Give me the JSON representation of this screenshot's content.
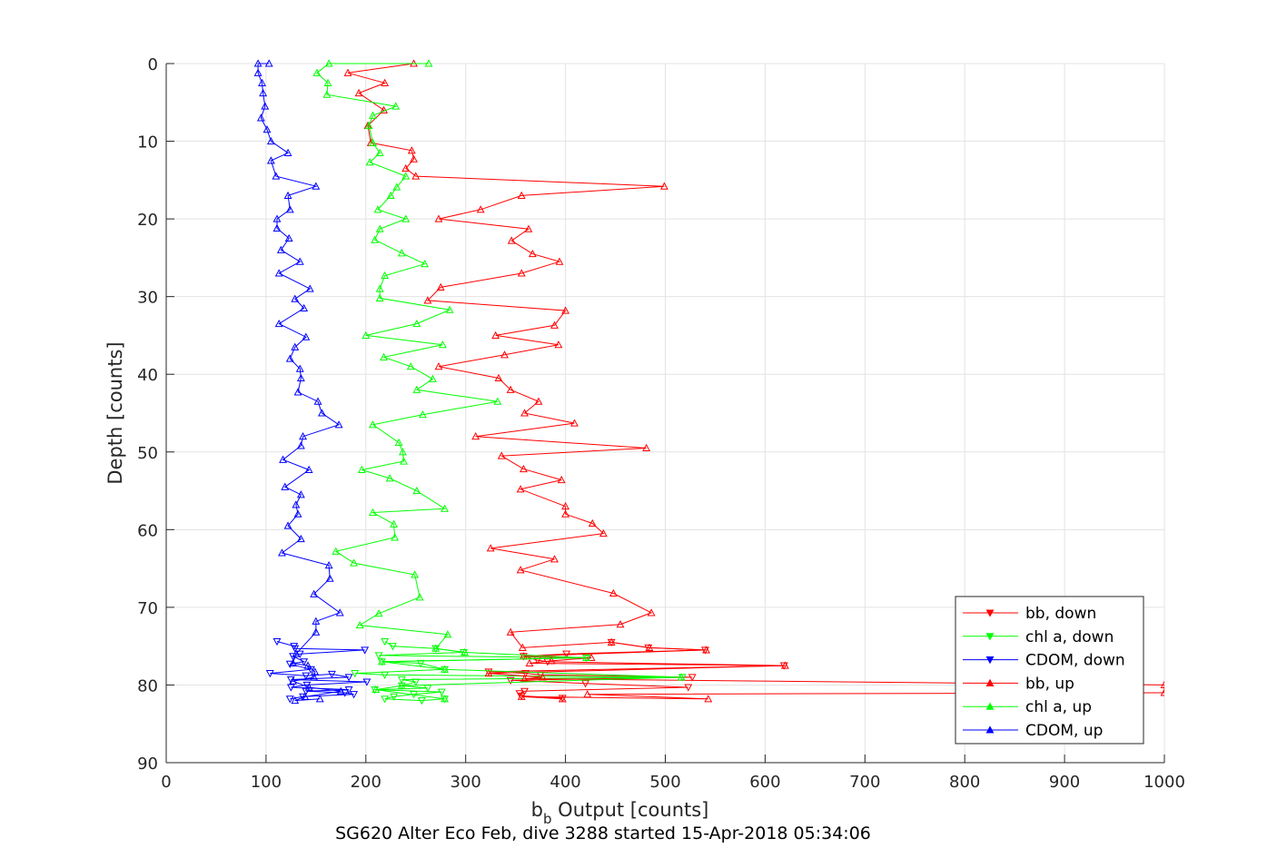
{
  "chart_data": {
    "type": "line",
    "title": "",
    "xlabel": "b",
    "xlabel_subscript": "b",
    "xlabel_suffix": " Output [counts]",
    "ylabel": "Depth [counts]",
    "footer": "SG620 Alter Eco Feb, dive 3288 started 15-Apr-2018 05:34:06",
    "xlim": [
      0,
      1000
    ],
    "ylim": [
      0,
      90
    ],
    "y_reversed": true,
    "grid": true,
    "x_ticks": [
      0,
      100,
      200,
      300,
      400,
      500,
      600,
      700,
      800,
      900,
      1000
    ],
    "y_ticks": [
      0,
      10,
      20,
      30,
      40,
      50,
      60,
      70,
      80,
      90
    ],
    "legend_position": "bottom-right",
    "series": [
      {
        "name": "bb, down",
        "color": "#ff0000",
        "marker": "triangle-down",
        "points": [
          [
            446,
            74.5
          ],
          [
            483,
            75.2
          ],
          [
            540,
            75.5
          ],
          [
            401,
            76
          ],
          [
            358,
            76.3
          ],
          [
            372,
            76.8
          ],
          [
            382,
            77
          ],
          [
            619,
            77.5
          ],
          [
            323,
            78.3
          ],
          [
            360,
            78.5
          ],
          [
            375,
            78.7
          ],
          [
            527,
            79
          ],
          [
            345,
            79.4
          ],
          [
            420,
            79.8
          ],
          [
            523,
            80.3
          ],
          [
            359,
            80.8
          ],
          [
            354,
            81.1
          ],
          [
            356,
            81.4
          ],
          [
            397,
            81.7
          ]
        ]
      },
      {
        "name": "chl a, down",
        "color": "#00ff00",
        "marker": "triangle-down",
        "points": [
          [
            219,
            74.4
          ],
          [
            227,
            75
          ],
          [
            270,
            75.3
          ],
          [
            298,
            75.8
          ],
          [
            213,
            76.2
          ],
          [
            421,
            76.5
          ],
          [
            216,
            77
          ],
          [
            255,
            77.2
          ],
          [
            279,
            78
          ],
          [
            189,
            78.5
          ],
          [
            219,
            78.7
          ],
          [
            517,
            79
          ],
          [
            236,
            79.3
          ],
          [
            250,
            79.6
          ],
          [
            236,
            80.1
          ],
          [
            262,
            80.4
          ],
          [
            209,
            80.6
          ],
          [
            276,
            80.9
          ],
          [
            248,
            81.2
          ],
          [
            228,
            81.5
          ],
          [
            219,
            81.8
          ],
          [
            256,
            82
          ],
          [
            279,
            81.8
          ]
        ]
      },
      {
        "name": "CDOM, down",
        "color": "#0000ff",
        "marker": "triangle-down",
        "points": [
          [
            111,
            74.4
          ],
          [
            128,
            75
          ],
          [
            129,
            75.3
          ],
          [
            199,
            75.5
          ],
          [
            134,
            76
          ],
          [
            127,
            76.3
          ],
          [
            138,
            77
          ],
          [
            124,
            77.3
          ],
          [
            145,
            78
          ],
          [
            104,
            78.5
          ],
          [
            140,
            78.8
          ],
          [
            166,
            78.6
          ],
          [
            183,
            79
          ],
          [
            125,
            79.3
          ],
          [
            201,
            79.6
          ],
          [
            141,
            80
          ],
          [
            125,
            80.3
          ],
          [
            183,
            80.6
          ],
          [
            140,
            80.8
          ],
          [
            179,
            81
          ],
          [
            188,
            81.2
          ],
          [
            137,
            81.5
          ],
          [
            124,
            81.8
          ]
        ]
      },
      {
        "name": "bb, up",
        "color": "#ff0000",
        "marker": "triangle-up",
        "points": [
          [
            397,
            81.8
          ],
          [
            356,
            81.5
          ],
          [
            543,
            81.8
          ],
          [
            422,
            81.2
          ],
          [
            1000,
            81
          ],
          [
            1000,
            80
          ],
          [
            359,
            79.2
          ],
          [
            377,
            79
          ],
          [
            323,
            78.5
          ],
          [
            620,
            77.5
          ],
          [
            364,
            77.2
          ],
          [
            386,
            76.9
          ],
          [
            426,
            76.5
          ],
          [
            358,
            76.3
          ],
          [
            541,
            75.5
          ],
          [
            484,
            75.2
          ],
          [
            446,
            74.5
          ],
          [
            357,
            75.2
          ],
          [
            345,
            73.2
          ],
          [
            455,
            72.2
          ],
          [
            486,
            70.7
          ],
          [
            448,
            68.2
          ],
          [
            355,
            65.2
          ],
          [
            389,
            63.8
          ],
          [
            325,
            62.4
          ],
          [
            438,
            60.5
          ],
          [
            427,
            59.2
          ],
          [
            400,
            58
          ],
          [
            400,
            57
          ],
          [
            355,
            54.8
          ],
          [
            396,
            53.6
          ],
          [
            358,
            52.2
          ],
          [
            336,
            50.5
          ],
          [
            481,
            49.5
          ],
          [
            310,
            48
          ],
          [
            409,
            46.3
          ],
          [
            359,
            45
          ],
          [
            373,
            43.5
          ],
          [
            345,
            42
          ],
          [
            333,
            40.5
          ],
          [
            273,
            39
          ],
          [
            339,
            37.5
          ],
          [
            393,
            36.2
          ],
          [
            330,
            35
          ],
          [
            389,
            33.7
          ],
          [
            400,
            31.8
          ],
          [
            262,
            30.5
          ],
          [
            275,
            28.8
          ],
          [
            356,
            27
          ],
          [
            394,
            25.5
          ],
          [
            367,
            24.5
          ],
          [
            346,
            22.8
          ],
          [
            363,
            21.3
          ],
          [
            273,
            20
          ],
          [
            315,
            18.8
          ],
          [
            356,
            17
          ],
          [
            499,
            15.8
          ],
          [
            250,
            14.5
          ],
          [
            240,
            13.5
          ],
          [
            248,
            12.3
          ],
          [
            246,
            11.2
          ],
          [
            205,
            10.2
          ],
          [
            202,
            8
          ],
          [
            218,
            6
          ],
          [
            193,
            3.8
          ],
          [
            219,
            2.5
          ],
          [
            182,
            1.2
          ],
          [
            248,
            0
          ]
        ]
      },
      {
        "name": "chl a, up",
        "color": "#00ff00",
        "marker": "triangle-up",
        "points": [
          [
            279,
            81.8
          ],
          [
            210,
            80.6
          ],
          [
            236,
            80.1
          ],
          [
            516,
            79
          ],
          [
            279,
            78
          ],
          [
            216,
            77
          ],
          [
            421,
            76.5
          ],
          [
            299,
            75.8
          ],
          [
            270,
            75.3
          ],
          [
            282,
            73.5
          ],
          [
            194,
            72.3
          ],
          [
            213,
            70.8
          ],
          [
            254,
            68.7
          ],
          [
            249,
            65.8
          ],
          [
            188,
            64.3
          ],
          [
            170,
            62.8
          ],
          [
            229,
            61
          ],
          [
            228,
            59.3
          ],
          [
            207,
            57.8
          ],
          [
            279,
            57.3
          ],
          [
            251,
            55
          ],
          [
            224,
            53.4
          ],
          [
            196,
            52.3
          ],
          [
            238,
            51.2
          ],
          [
            237,
            50
          ],
          [
            233,
            48.8
          ],
          [
            207,
            46.5
          ],
          [
            257,
            45.2
          ],
          [
            332,
            43.5
          ],
          [
            251,
            42
          ],
          [
            267,
            40.6
          ],
          [
            245,
            39
          ],
          [
            218,
            37.8
          ],
          [
            277,
            36.2
          ],
          [
            200,
            35
          ],
          [
            251,
            33.5
          ],
          [
            284,
            31.7
          ],
          [
            214,
            30.2
          ],
          [
            214,
            29
          ],
          [
            219,
            27.3
          ],
          [
            259,
            25.8
          ],
          [
            236,
            24.4
          ],
          [
            209,
            22.7
          ],
          [
            214,
            21.3
          ],
          [
            240,
            20
          ],
          [
            212,
            18.8
          ],
          [
            225,
            17
          ],
          [
            231,
            15.9
          ],
          [
            240,
            14.5
          ],
          [
            204,
            12.7
          ],
          [
            214,
            11.5
          ],
          [
            207,
            10.2
          ],
          [
            203,
            8
          ],
          [
            207,
            6.7
          ],
          [
            230,
            5.5
          ],
          [
            161,
            4
          ],
          [
            162,
            2.5
          ],
          [
            151,
            1.2
          ],
          [
            163,
            0
          ],
          [
            263,
            0
          ]
        ]
      },
      {
        "name": "CDOM, up",
        "color": "#0000ff",
        "marker": "triangle-up",
        "points": [
          [
            154,
            81.8
          ],
          [
            129,
            82
          ],
          [
            139,
            81.5
          ],
          [
            175,
            80.8
          ],
          [
            143,
            80.3
          ],
          [
            127,
            79.5
          ],
          [
            148,
            79
          ],
          [
            149,
            78.3
          ],
          [
            142,
            77.5
          ],
          [
            127,
            77.2
          ],
          [
            130,
            76
          ],
          [
            150,
            73.2
          ],
          [
            150,
            71.8
          ],
          [
            174,
            70.7
          ],
          [
            148,
            68.3
          ],
          [
            164,
            66.3
          ],
          [
            163,
            64.6
          ],
          [
            116,
            63
          ],
          [
            135,
            61.2
          ],
          [
            122,
            59.5
          ],
          [
            132,
            58
          ],
          [
            130,
            56.8
          ],
          [
            135,
            55.5
          ],
          [
            119,
            54.5
          ],
          [
            143,
            52.3
          ],
          [
            117,
            51
          ],
          [
            135,
            49.2
          ],
          [
            137,
            48
          ],
          [
            173,
            46.5
          ],
          [
            156,
            45
          ],
          [
            152,
            43.5
          ],
          [
            132,
            42.3
          ],
          [
            135,
            40.5
          ],
          [
            134,
            39.3
          ],
          [
            124,
            38
          ],
          [
            129,
            36.5
          ],
          [
            140,
            35.2
          ],
          [
            113,
            33.5
          ],
          [
            138,
            31.5
          ],
          [
            129,
            30.3
          ],
          [
            144,
            29
          ],
          [
            113,
            27
          ],
          [
            134,
            25.5
          ],
          [
            115,
            24
          ],
          [
            123,
            22.5
          ],
          [
            111,
            21.2
          ],
          [
            111,
            20
          ],
          [
            124,
            18.8
          ],
          [
            122,
            17
          ],
          [
            150,
            15.8
          ],
          [
            110,
            14.5
          ],
          [
            105,
            12.5
          ],
          [
            122,
            11.5
          ],
          [
            105,
            10
          ],
          [
            101,
            8.5
          ],
          [
            95,
            7
          ],
          [
            99,
            5.5
          ],
          [
            97,
            3.8
          ],
          [
            96,
            2.5
          ],
          [
            92,
            1.2
          ],
          [
            92,
            0
          ],
          [
            103,
            0
          ]
        ]
      }
    ]
  }
}
